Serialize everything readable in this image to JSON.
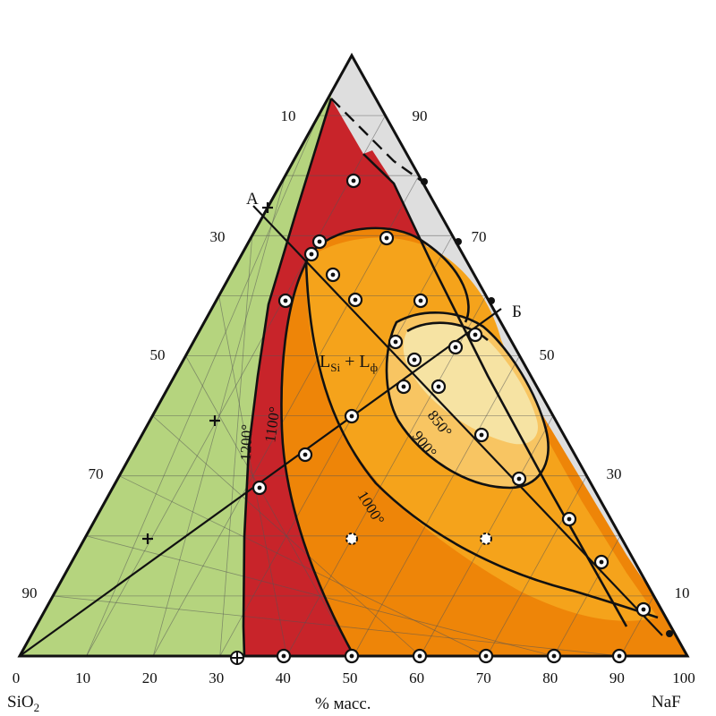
{
  "components": {
    "left": "SiO",
    "left_subscript": "2",
    "right": "NaF",
    "axis_unit": "% масс."
  },
  "bottom_ticks": [
    "0",
    "10",
    "20",
    "30",
    "40",
    "50",
    "60",
    "70",
    "80",
    "90",
    "100"
  ],
  "left_side_ticks": [
    "90",
    "70",
    "50",
    "30",
    "10"
  ],
  "right_side_ticks": [
    "10",
    "30",
    "50",
    "70",
    "90"
  ],
  "point_labels": {
    "a": "А",
    "b": "Б"
  },
  "field_label": {
    "main": "L",
    "sub1": "Si",
    "plus": " + L",
    "sub2": "ф"
  },
  "isotherms": [
    "1200°",
    "1100°",
    "1000°",
    "900°",
    "850°"
  ],
  "colors": {
    "green": "#b5d47e",
    "red": "#c8242a",
    "dark_orange": "#ee8508",
    "orange": "#f5a31b",
    "light_orange": "#f8c562",
    "pale_yellow": "#f6e3a3",
    "grey": "#dedede",
    "line": "#111111"
  }
}
